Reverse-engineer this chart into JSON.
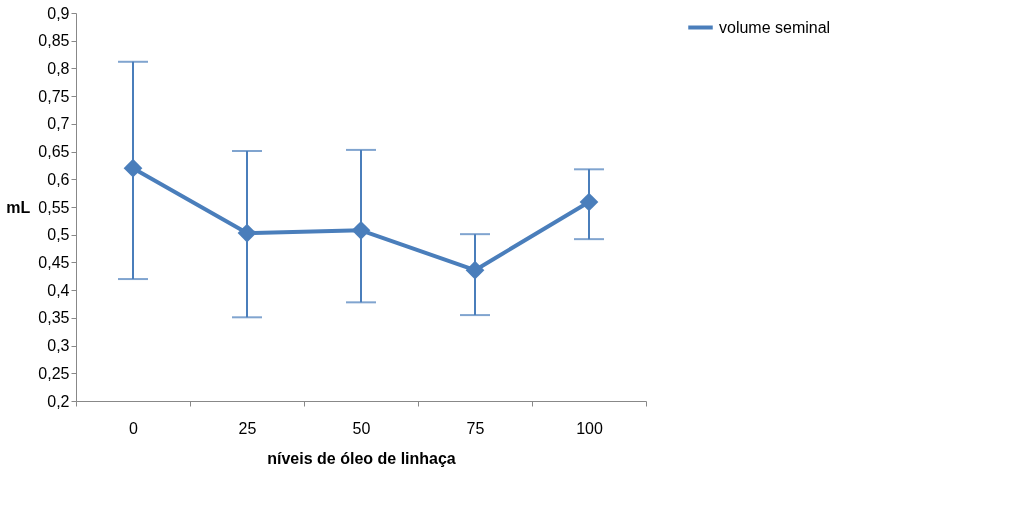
{
  "chart_data": {
    "type": "line",
    "xlabel": "níveis de óleo de linhaça",
    "ylabel": "mL",
    "categories": [
      "0",
      "25",
      "50",
      "75",
      "100"
    ],
    "series": [
      {
        "name": "volume seminal",
        "color": "#4a7ebb",
        "values": [
          0.62,
          0.503,
          0.508,
          0.436,
          0.559
        ],
        "errors": [
          [
            0.42,
            0.812
          ],
          [
            0.351,
            0.651
          ],
          [
            0.378,
            0.653
          ],
          [
            0.355,
            0.501
          ],
          [
            0.492,
            0.618
          ]
        ]
      }
    ],
    "ylim": [
      0.2,
      0.9
    ],
    "yticks": [
      {
        "value": 0.2,
        "label": "0,2"
      },
      {
        "value": 0.25,
        "label": "0,25"
      },
      {
        "value": 0.3,
        "label": "0,3"
      },
      {
        "value": 0.35,
        "label": "0,35"
      },
      {
        "value": 0.4,
        "label": "0,4"
      },
      {
        "value": 0.45,
        "label": "0,45"
      },
      {
        "value": 0.5,
        "label": "0,5"
      },
      {
        "value": 0.55,
        "label": "0,55"
      },
      {
        "value": 0.6,
        "label": "0,6"
      },
      {
        "value": 0.65,
        "label": "0,65"
      },
      {
        "value": 0.7,
        "label": "0,7"
      },
      {
        "value": 0.75,
        "label": "0,75"
      },
      {
        "value": 0.8,
        "label": "0,8"
      },
      {
        "value": 0.85,
        "label": "0,85"
      },
      {
        "value": 0.9,
        "label": "0,9"
      }
    ],
    "grid": false,
    "legend": "right",
    "marker": "diamond",
    "line_style": "solid"
  }
}
